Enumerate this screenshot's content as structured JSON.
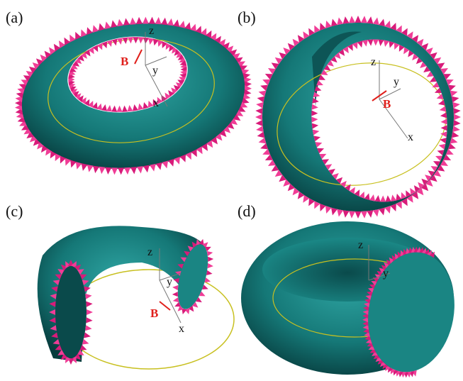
{
  "panels": [
    {
      "label": "(a)",
      "axes": {
        "z": "z",
        "y": "y",
        "x": "x"
      },
      "field": "B"
    },
    {
      "label": "(b)",
      "axes": {
        "z": "z",
        "y": "y",
        "x": "x"
      },
      "field": "B"
    },
    {
      "label": "(c)",
      "axes": {
        "z": "z",
        "y": "y",
        "x": "x"
      },
      "field": "B"
    },
    {
      "label": "(d)",
      "axes": {
        "z": "z",
        "y": "y"
      }
    }
  ]
}
